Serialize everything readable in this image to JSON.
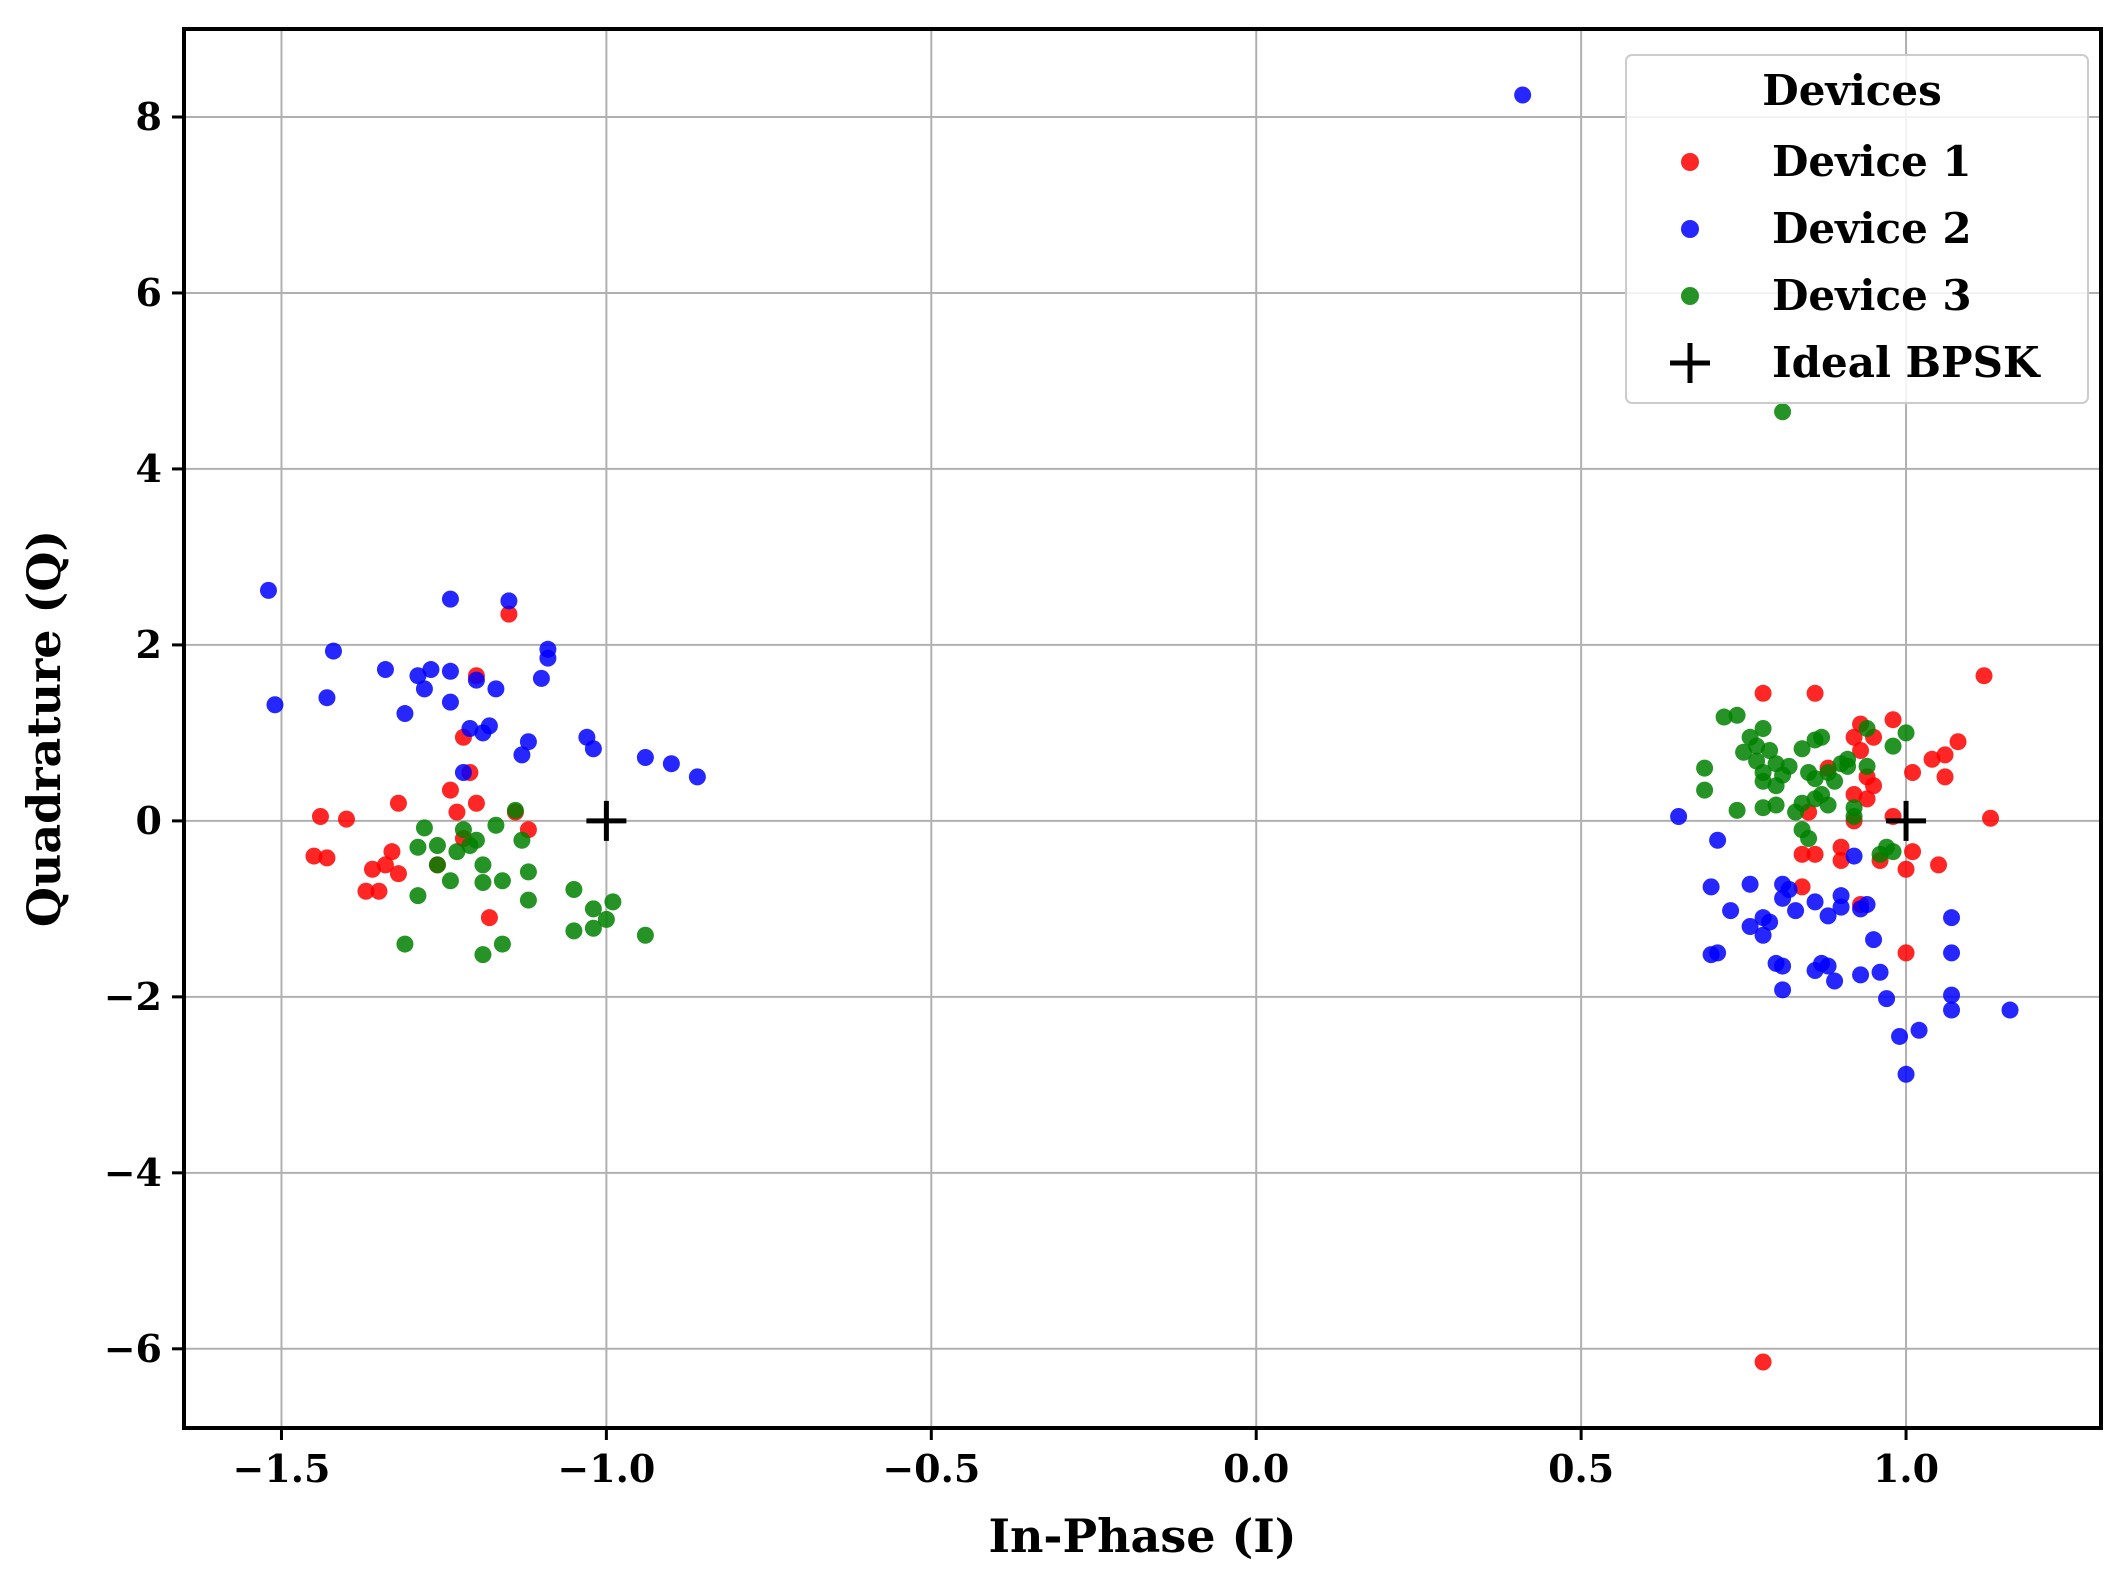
{
  "chart_data": {
    "type": "scatter",
    "title": "",
    "xlabel": "In-Phase (I)",
    "ylabel": "Quadrature (Q)",
    "xlim": [
      -1.65,
      1.3
    ],
    "ylim": [
      -6.9,
      9.0
    ],
    "grid": true,
    "x_ticks": [
      -1.5,
      -1.0,
      -0.5,
      0.0,
      0.5,
      1.0
    ],
    "x_tick_labels": [
      "−1.5",
      "−1.0",
      "−0.5",
      "0.0",
      "0.5",
      "1.0"
    ],
    "y_ticks": [
      -6,
      -4,
      -2,
      0,
      2,
      4,
      6,
      8
    ],
    "y_tick_labels": [
      "−6",
      "−4",
      "−2",
      "0",
      "2",
      "4",
      "6",
      "8"
    ],
    "legend": {
      "title": "Devices",
      "placement": "top-right"
    },
    "series": [
      {
        "name": "Device 1",
        "color": "#ff0000",
        "marker": "circle",
        "points": [
          [
            -1.15,
            2.35
          ],
          [
            -1.22,
            0.95
          ],
          [
            -1.2,
            1.65
          ],
          [
            -1.21,
            0.55
          ],
          [
            -1.24,
            0.35
          ],
          [
            -1.44,
            0.05
          ],
          [
            -1.4,
            0.02
          ],
          [
            -1.45,
            -0.4
          ],
          [
            -1.43,
            -0.42
          ],
          [
            -1.32,
            0.2
          ],
          [
            -1.36,
            -0.55
          ],
          [
            -1.33,
            -0.35
          ],
          [
            -1.34,
            -0.5
          ],
          [
            -1.32,
            -0.6
          ],
          [
            -1.35,
            -0.8
          ],
          [
            -1.37,
            -0.8
          ],
          [
            -1.26,
            -0.5
          ],
          [
            -1.23,
            0.1
          ],
          [
            -1.2,
            0.2
          ],
          [
            -1.22,
            -0.2
          ],
          [
            -1.18,
            -1.1
          ],
          [
            -1.12,
            -0.1
          ],
          [
            -1.14,
            0.1
          ],
          [
            0.78,
            -6.15
          ],
          [
            1.12,
            1.65
          ],
          [
            1.13,
            0.03
          ],
          [
            0.78,
            1.45
          ],
          [
            0.86,
            1.45
          ],
          [
            0.93,
            1.1
          ],
          [
            0.98,
            1.15
          ],
          [
            0.95,
            0.95
          ],
          [
            1.08,
            0.9
          ],
          [
            1.04,
            0.7
          ],
          [
            1.06,
            0.75
          ],
          [
            1.06,
            0.5
          ],
          [
            1.01,
            0.55
          ],
          [
            0.92,
            0.95
          ],
          [
            0.93,
            0.8
          ],
          [
            0.88,
            0.6
          ],
          [
            0.94,
            0.5
          ],
          [
            0.95,
            0.4
          ],
          [
            0.94,
            0.25
          ],
          [
            0.92,
            0.3
          ],
          [
            0.92,
            0.0
          ],
          [
            0.85,
            0.1
          ],
          [
            0.86,
            -0.38
          ],
          [
            0.84,
            -0.38
          ],
          [
            0.9,
            -0.3
          ],
          [
            0.9,
            -0.45
          ],
          [
            0.96,
            -0.45
          ],
          [
            1.01,
            -0.35
          ],
          [
            1.0,
            -0.55
          ],
          [
            1.05,
            -0.5
          ],
          [
            0.84,
            -0.75
          ],
          [
            0.93,
            -0.95
          ],
          [
            1.0,
            -1.5
          ],
          [
            0.98,
            0.05
          ]
        ]
      },
      {
        "name": "Device 2",
        "color": "#0000ff",
        "marker": "circle",
        "points": [
          [
            0.41,
            8.25
          ],
          [
            -1.52,
            2.62
          ],
          [
            -1.51,
            1.32
          ],
          [
            -1.42,
            1.93
          ],
          [
            -1.43,
            1.4
          ],
          [
            -1.34,
            1.72
          ],
          [
            -1.31,
            1.22
          ],
          [
            -1.29,
            1.65
          ],
          [
            -1.28,
            1.5
          ],
          [
            -1.27,
            1.72
          ],
          [
            -1.24,
            2.52
          ],
          [
            -1.24,
            1.7
          ],
          [
            -1.24,
            1.35
          ],
          [
            -1.2,
            1.6
          ],
          [
            -1.17,
            1.5
          ],
          [
            -1.15,
            2.5
          ],
          [
            -1.21,
            1.05
          ],
          [
            -1.19,
            1.0
          ],
          [
            -1.18,
            1.08
          ],
          [
            -1.22,
            0.55
          ],
          [
            -1.13,
            0.75
          ],
          [
            -1.12,
            0.9
          ],
          [
            -1.1,
            1.62
          ],
          [
            -1.09,
            1.85
          ],
          [
            -1.09,
            1.95
          ],
          [
            -1.03,
            0.95
          ],
          [
            -1.02,
            0.82
          ],
          [
            -0.94,
            0.72
          ],
          [
            -0.9,
            0.65
          ],
          [
            -0.86,
            0.5
          ],
          [
            0.65,
            0.05
          ],
          [
            0.71,
            -0.22
          ],
          [
            0.7,
            -0.75
          ],
          [
            0.73,
            -1.02
          ],
          [
            0.76,
            -0.72
          ],
          [
            0.76,
            -1.2
          ],
          [
            0.78,
            -1.1
          ],
          [
            0.79,
            -1.15
          ],
          [
            0.78,
            -1.3
          ],
          [
            0.8,
            -1.62
          ],
          [
            0.81,
            -1.65
          ],
          [
            0.81,
            -0.72
          ],
          [
            0.82,
            -0.78
          ],
          [
            0.81,
            -0.88
          ],
          [
            0.83,
            -1.02
          ],
          [
            0.86,
            -0.92
          ],
          [
            0.88,
            -1.08
          ],
          [
            0.9,
            -0.85
          ],
          [
            0.9,
            -0.98
          ],
          [
            0.94,
            -0.95
          ],
          [
            0.92,
            -0.4
          ],
          [
            0.93,
            -1.0
          ],
          [
            0.95,
            -1.35
          ],
          [
            0.96,
            -1.72
          ],
          [
            0.93,
            -1.75
          ],
          [
            0.89,
            -1.82
          ],
          [
            0.87,
            -1.62
          ],
          [
            0.86,
            -1.7
          ],
          [
            0.81,
            -1.92
          ],
          [
            0.7,
            -1.52
          ],
          [
            0.71,
            -1.5
          ],
          [
            0.97,
            -2.02
          ],
          [
            0.99,
            -2.45
          ],
          [
            1.02,
            -2.38
          ],
          [
            1.0,
            -2.88
          ],
          [
            1.07,
            -1.98
          ],
          [
            1.07,
            -2.15
          ],
          [
            1.07,
            -1.5
          ],
          [
            1.07,
            -1.1
          ],
          [
            1.16,
            -2.15
          ],
          [
            0.88,
            -1.65
          ]
        ]
      },
      {
        "name": "Device 3",
        "color": "#008000",
        "marker": "circle",
        "points": [
          [
            0.81,
            4.65
          ],
          [
            -1.28,
            -0.08
          ],
          [
            -1.29,
            -0.3
          ],
          [
            -1.26,
            -0.5
          ],
          [
            -1.26,
            -0.28
          ],
          [
            -1.23,
            -0.35
          ],
          [
            -1.22,
            -0.1
          ],
          [
            -1.2,
            -0.22
          ],
          [
            -1.19,
            -0.5
          ],
          [
            -1.17,
            -0.05
          ],
          [
            -1.16,
            -0.68
          ],
          [
            -1.19,
            -0.7
          ],
          [
            -1.14,
            0.12
          ],
          [
            -1.13,
            -0.22
          ],
          [
            -1.12,
            -0.58
          ],
          [
            -1.12,
            -0.9
          ],
          [
            -1.24,
            -0.68
          ],
          [
            -1.29,
            -0.85
          ],
          [
            -1.31,
            -1.4
          ],
          [
            -1.19,
            -1.52
          ],
          [
            -1.16,
            -1.4
          ],
          [
            -1.05,
            -0.78
          ],
          [
            -1.05,
            -1.25
          ],
          [
            -1.02,
            -1.22
          ],
          [
            -1.02,
            -1.0
          ],
          [
            -1.0,
            -1.12
          ],
          [
            -0.99,
            -0.92
          ],
          [
            -0.94,
            -1.3
          ],
          [
            -1.21,
            -0.28
          ],
          [
            0.72,
            1.18
          ],
          [
            0.74,
            1.2
          ],
          [
            0.76,
            0.95
          ],
          [
            0.77,
            0.85
          ],
          [
            0.78,
            1.05
          ],
          [
            0.79,
            0.8
          ],
          [
            0.75,
            0.78
          ],
          [
            0.77,
            0.68
          ],
          [
            0.78,
            0.55
          ],
          [
            0.78,
            0.45
          ],
          [
            0.8,
            0.4
          ],
          [
            0.8,
            0.65
          ],
          [
            0.81,
            0.52
          ],
          [
            0.82,
            0.62
          ],
          [
            0.84,
            0.82
          ],
          [
            0.86,
            0.92
          ],
          [
            0.87,
            0.95
          ],
          [
            0.85,
            0.55
          ],
          [
            0.86,
            0.48
          ],
          [
            0.87,
            0.3
          ],
          [
            0.83,
            0.1
          ],
          [
            0.84,
            0.2
          ],
          [
            0.86,
            0.25
          ],
          [
            0.88,
            0.18
          ],
          [
            0.89,
            0.45
          ],
          [
            0.9,
            0.65
          ],
          [
            0.91,
            0.7
          ],
          [
            0.91,
            0.62
          ],
          [
            0.92,
            0.15
          ],
          [
            0.94,
            0.62
          ],
          [
            0.94,
            1.05
          ],
          [
            0.98,
            0.85
          ],
          [
            1.0,
            1.0
          ],
          [
            0.92,
            0.05
          ],
          [
            0.69,
            0.6
          ],
          [
            0.69,
            0.35
          ],
          [
            0.74,
            0.12
          ],
          [
            0.78,
            0.15
          ],
          [
            0.8,
            0.18
          ],
          [
            0.84,
            -0.1
          ],
          [
            0.85,
            -0.2
          ],
          [
            0.97,
            -0.3
          ],
          [
            0.98,
            -0.35
          ],
          [
            0.96,
            -0.38
          ],
          [
            0.88,
            0.55
          ]
        ]
      },
      {
        "name": "Ideal BPSK",
        "color": "#000000",
        "marker": "plus",
        "points": [
          [
            -1.0,
            0.0
          ],
          [
            1.0,
            0.0
          ]
        ]
      }
    ]
  }
}
